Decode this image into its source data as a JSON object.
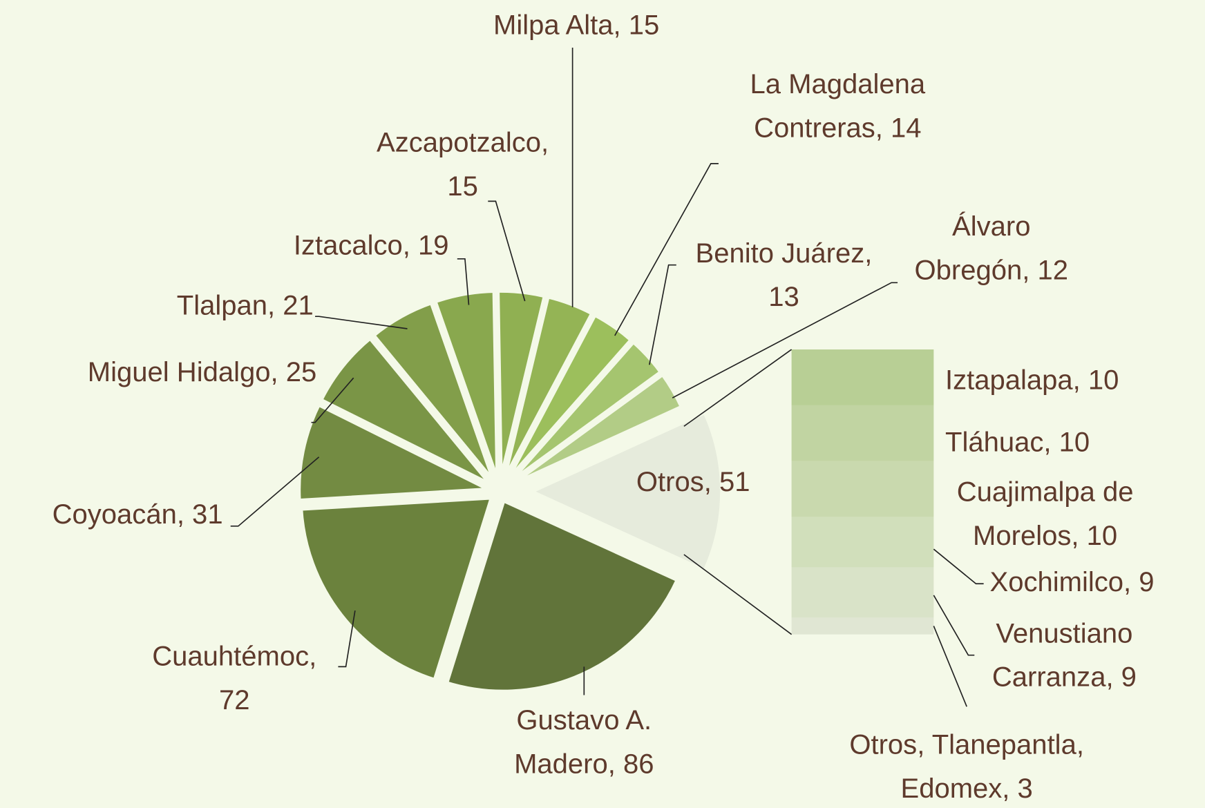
{
  "chart_data": {
    "type": "bar-of-pie",
    "values": [
      86,
      72,
      31,
      25,
      21,
      19,
      15,
      15,
      14,
      13,
      12,
      51
    ],
    "value_labels": [
      [
        "Gustavo A.",
        "Madero, 86"
      ],
      [
        "Cuauhtémoc,",
        "72"
      ],
      [
        "Coyoacán, 31"
      ],
      [
        "Miguel Hidalgo, 25"
      ],
      [
        "Tlalpan, 21"
      ],
      [
        "Iztacalco, 19"
      ],
      [
        "Azcapotzalco,",
        "15"
      ],
      [
        "Milpa Alta, 15"
      ],
      [
        "La Magdalena",
        "Contreras, 14"
      ],
      [
        "Benito Juárez,",
        "13"
      ],
      [
        "Álvaro",
        "Obregón, 12"
      ],
      [
        "Otros, 51"
      ]
    ],
    "colors": [
      "#61743a",
      "#6b823d",
      "#738b42",
      "#7a9546",
      "#829e4a",
      "#89a84e",
      "#90b052",
      "#94b455",
      "#9cbf5c",
      "#a5c56f",
      "#b2cc86",
      "#e6ebdc"
    ],
    "bar": {
      "values": [
        10,
        10,
        10,
        9,
        9,
        3
      ],
      "value_labels": [
        [
          "Iztapalapa, 10"
        ],
        [
          "Tláhuac, 10"
        ],
        [
          "Cuajimalpa de",
          "Morelos, 10"
        ],
        [
          "Xochimilco, 9"
        ],
        [
          "Venustiano",
          "Carranza, 9"
        ],
        [
          "Otros, Tlanepantla,",
          "Edomex, 3"
        ]
      ],
      "colors": [
        "#b8cf95",
        "#c1d4a2",
        "#c9d9ae",
        "#d1dfbb",
        "#d9e3c8",
        "#e0e6d3"
      ]
    }
  }
}
